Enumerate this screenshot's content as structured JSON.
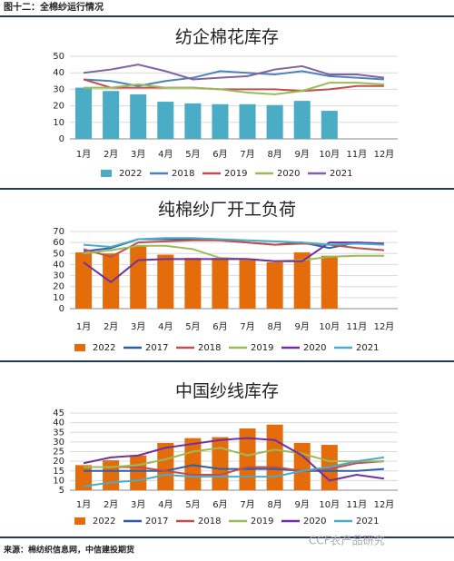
{
  "figure_title": "图十二：全棉纱运行情况",
  "source": "来源：棉纺织信息网，中信建投期货",
  "watermark": "CCF农产品研究",
  "chart_data": [
    {
      "type": "combo",
      "title": "纺企棉花库存",
      "categories": [
        "1月",
        "2月",
        "3月",
        "4月",
        "5月",
        "6月",
        "7月",
        "8月",
        "9月",
        "10月",
        "11月",
        "12月"
      ],
      "ylim": [
        0,
        50
      ],
      "yticks": [
        0,
        10,
        20,
        30,
        40,
        50
      ],
      "grid": true,
      "series": [
        {
          "name": "2022",
          "type": "bar",
          "color": "#4bacc6",
          "values": [
            31,
            29,
            27,
            22.5,
            21.5,
            21,
            21,
            20.5,
            23,
            17,
            null,
            null
          ]
        },
        {
          "name": "2018",
          "type": "line",
          "color": "#4f81bd",
          "values": [
            36,
            35,
            32,
            35,
            37,
            41,
            40,
            39,
            41,
            38,
            37,
            36
          ]
        },
        {
          "name": "2019",
          "type": "line",
          "color": "#c0504d",
          "values": [
            36,
            31,
            31,
            31,
            31,
            30,
            30,
            30,
            29,
            30,
            32,
            32
          ]
        },
        {
          "name": "2020",
          "type": "line",
          "color": "#9bbb59",
          "values": [
            31,
            31,
            33,
            31,
            31,
            30,
            28,
            27,
            29,
            34,
            34,
            33
          ]
        },
        {
          "name": "2021",
          "type": "line",
          "color": "#8064a2",
          "values": [
            40,
            42,
            45,
            41,
            36,
            37,
            38,
            42,
            44,
            39,
            39,
            37
          ]
        }
      ]
    },
    {
      "type": "combo",
      "title": "纯棉纱厂开工负荷",
      "categories": [
        "1月",
        "2月",
        "3月",
        "4月",
        "5月",
        "6月",
        "7月",
        "8月",
        "9月",
        "10月",
        "11月",
        "12月"
      ],
      "ylim": [
        0,
        70
      ],
      "yticks": [
        0,
        10,
        20,
        30,
        40,
        50,
        60,
        70
      ],
      "grid": true,
      "series": [
        {
          "name": "2022",
          "type": "bar",
          "color": "#e46c0a",
          "values": [
            51,
            50,
            57,
            49,
            46,
            46,
            44,
            42,
            51,
            48,
            null,
            null
          ]
        },
        {
          "name": "2017",
          "type": "line",
          "color": "#2e5fa3",
          "values": [
            52,
            55,
            63,
            63,
            63,
            62,
            60,
            58,
            60,
            55,
            60,
            59
          ]
        },
        {
          "name": "2018",
          "type": "line",
          "color": "#c0504d",
          "values": [
            54,
            47,
            60,
            61,
            62,
            62,
            60,
            58,
            59,
            58,
            55,
            53
          ]
        },
        {
          "name": "2019",
          "type": "line",
          "color": "#9bbb59",
          "values": [
            50,
            53,
            57,
            57,
            54,
            46,
            45,
            43,
            44,
            47,
            48,
            48
          ]
        },
        {
          "name": "2020",
          "type": "line",
          "color": "#7030a0",
          "values": [
            42,
            24,
            44,
            45,
            45,
            45,
            45,
            43,
            43,
            60,
            60,
            59
          ]
        },
        {
          "name": "2021",
          "type": "line",
          "color": "#4bacc6",
          "values": [
            58,
            56,
            63,
            64,
            64,
            63,
            62,
            61,
            60,
            58,
            59,
            58
          ]
        }
      ]
    },
    {
      "type": "combo",
      "title": "中国纱线库存",
      "categories": [
        "1月",
        "2月",
        "3月",
        "4月",
        "5月",
        "6月",
        "7月",
        "8月",
        "9月",
        "10月",
        "11月",
        "12月"
      ],
      "ylim": [
        5,
        45
      ],
      "yticks": [
        5,
        10,
        15,
        20,
        25,
        30,
        35,
        40,
        45
      ],
      "grid": true,
      "series": [
        {
          "name": "2022",
          "type": "bar",
          "color": "#e46c0a",
          "values": [
            18,
            20.5,
            23,
            29.5,
            32,
            32.5,
            37,
            39,
            29.5,
            28.5,
            null,
            null
          ]
        },
        {
          "name": "2017",
          "type": "line",
          "color": "#2e5fa3",
          "values": [
            15,
            15,
            15,
            15,
            18,
            16,
            16,
            16,
            15,
            15,
            15,
            16
          ]
        },
        {
          "name": "2018",
          "type": "line",
          "color": "#c0504d",
          "values": [
            17,
            17,
            17,
            15,
            13,
            13,
            17,
            17,
            15,
            16,
            19,
            20
          ]
        },
        {
          "name": "2019",
          "type": "line",
          "color": "#9bbb59",
          "values": [
            17,
            17,
            18,
            21,
            25,
            27,
            23,
            26,
            24,
            20,
            20,
            20
          ]
        },
        {
          "name": "2020",
          "type": "line",
          "color": "#7030a0",
          "values": [
            19,
            22,
            23,
            27,
            29,
            31,
            32,
            31,
            23,
            10,
            13,
            11
          ]
        },
        {
          "name": "2021",
          "type": "line",
          "color": "#4bacc6",
          "values": [
            7,
            9,
            10,
            13,
            12,
            12,
            12,
            12,
            15,
            17,
            20,
            22
          ]
        }
      ]
    }
  ]
}
